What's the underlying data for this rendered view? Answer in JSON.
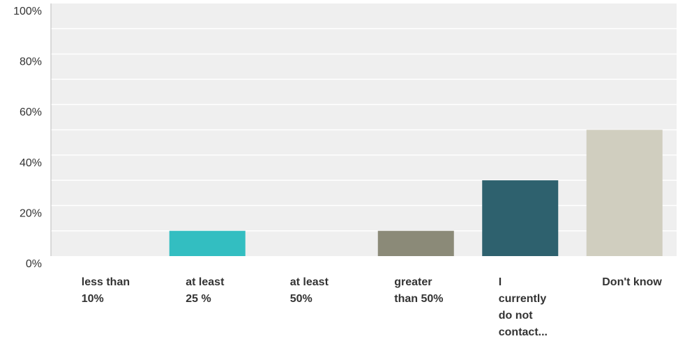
{
  "chart_data": {
    "type": "bar",
    "categories": [
      [
        "less than",
        "10%"
      ],
      [
        "at least",
        "25 %"
      ],
      [
        "at least",
        "50%"
      ],
      [
        "greater",
        "than 50%"
      ],
      [
        "I",
        "currently",
        "do not",
        "contact..."
      ],
      [
        "Don't know"
      ]
    ],
    "values": [
      0,
      10,
      0,
      10,
      30,
      50
    ],
    "colors": [
      "#6c97a6",
      "#33bec1",
      "#6c97a6",
      "#8b8a78",
      "#2e616e",
      "#d0cebf"
    ],
    "y_ticks": [
      "0%",
      "20%",
      "40%",
      "60%",
      "80%",
      "100%"
    ],
    "ylim": [
      0,
      100
    ],
    "grid": true,
    "plot_background": "#efefef",
    "grid_color": "#ffffff",
    "axis_color": "#bdbdbd",
    "title": "",
    "xlabel": "",
    "ylabel": ""
  }
}
